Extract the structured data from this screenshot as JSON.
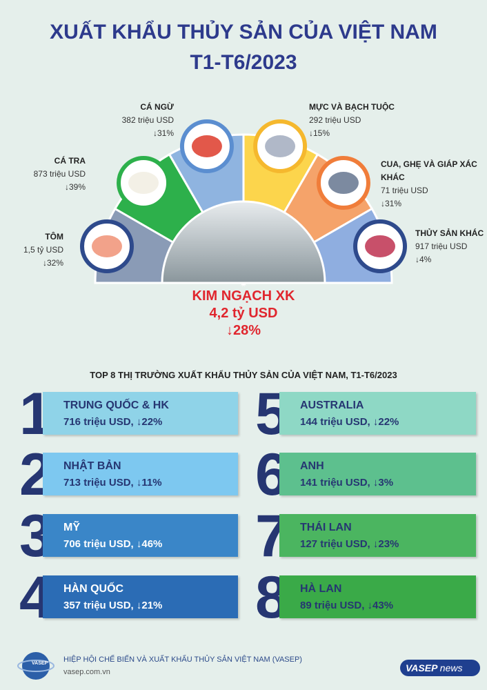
{
  "header": {
    "title_line1": "XUẤT KHẨU THỦY SẢN CỦA VIỆT NAM",
    "title_line2": "T1-T6/2023"
  },
  "products": [
    {
      "name": "TÔM",
      "value": "1,5 tỷ USD",
      "change": "↓32%"
    },
    {
      "name": "CÁ TRA",
      "value": "873 triệu USD",
      "change": "↓39%"
    },
    {
      "name": "CÁ NGỪ",
      "value": "382 triệu USD",
      "change": "↓31%"
    },
    {
      "name": "MỰC VÀ BẠCH TUỘC",
      "value": "292 triệu USD",
      "change": "↓15%"
    },
    {
      "name": "CUA, GHẸ VÀ GIÁP XÁC KHÁC",
      "value": "71 triệu USD",
      "change": "↓31%"
    },
    {
      "name": "THỦY SẢN KHÁC",
      "value": "917 triệu USD",
      "change": "↓4%"
    }
  ],
  "center": {
    "label": "KIM NGẠCH XK",
    "value": "4,2 tỷ USD",
    "change": "↓28%"
  },
  "markets_title": "TOP 8 THỊ TRƯỜNG XUẤT KHẨU THỦY SẢN CỦA VIỆT NAM, T1-T6/2023",
  "markets": [
    {
      "rank": "1",
      "name": "TRUNG QUỐC & HK",
      "value": "716 triệu USD, ↓22%"
    },
    {
      "rank": "2",
      "name": "NHẬT BẢN",
      "value": "713 triệu USD, ↓11%"
    },
    {
      "rank": "3",
      "name": "MỸ",
      "value": "706 triệu USD, ↓46%"
    },
    {
      "rank": "4",
      "name": "HÀN QUỐC",
      "value": "357 triệu USD, ↓21%"
    },
    {
      "rank": "5",
      "name": "AUSTRALIA",
      "value": "144 triệu USD, ↓22%"
    },
    {
      "rank": "6",
      "name": "ANH",
      "value": "141 triệu USD, ↓3%"
    },
    {
      "rank": "7",
      "name": "THÁI LAN",
      "value": "127 triệu USD, ↓23%"
    },
    {
      "rank": "8",
      "name": "HÀ LAN",
      "value": "89 triệu USD, ↓43%"
    }
  ],
  "footer": {
    "org": "HIỆP HỘI CHẾ BIẾN VÀ XUẤT KHẨU THỦY SẢN VIỆT NAM (VASEP)",
    "website": "vasep.com.vn",
    "logo": "VASEP",
    "brand": "VASEP",
    "brand_suffix": "news"
  }
}
